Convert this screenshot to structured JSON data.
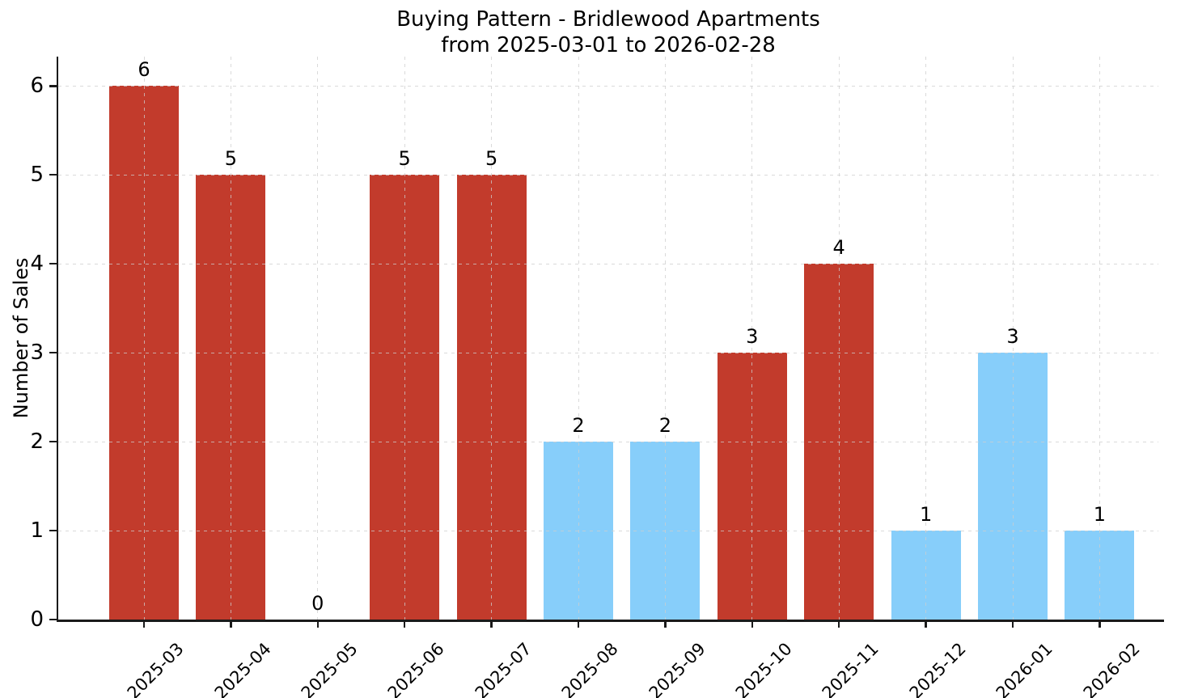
{
  "chart_data": {
    "type": "bar",
    "title": "Buying Pattern - Bridlewood Apartments",
    "subtitle": "from 2025-03-01 to 2026-02-28",
    "xlabel": "",
    "ylabel": "Number of Sales",
    "categories": [
      "2025-03",
      "2025-04",
      "2025-05",
      "2025-06",
      "2025-07",
      "2025-08",
      "2025-09",
      "2025-10",
      "2025-11",
      "2025-12",
      "2026-01",
      "2026-02"
    ],
    "values": [
      6,
      5,
      0,
      5,
      5,
      2,
      2,
      3,
      4,
      1,
      3,
      1
    ],
    "value_labels": [
      "6",
      "5",
      "0",
      "5",
      "5",
      "2",
      "2",
      "3",
      "4",
      "1",
      "3",
      "1"
    ],
    "bar_colors": [
      "#c23b2c",
      "#c23b2c",
      null,
      "#c23b2c",
      "#c23b2c",
      "#87cefa",
      "#87cefa",
      "#c23b2c",
      "#c23b2c",
      "#87cefa",
      "#87cefa",
      "#87cefa"
    ],
    "yticks": [
      0,
      1,
      2,
      3,
      4,
      5,
      6
    ],
    "ylim": [
      0,
      6.33
    ],
    "grid": true,
    "grid_style": "dashed",
    "legend": "none",
    "colors": {
      "red_bar": "#c23b2c",
      "blue_bar": "#87cefa",
      "grid": "#cecece",
      "axis": "#1a1a1a",
      "text": "#000000",
      "background": "#ffffff"
    }
  }
}
